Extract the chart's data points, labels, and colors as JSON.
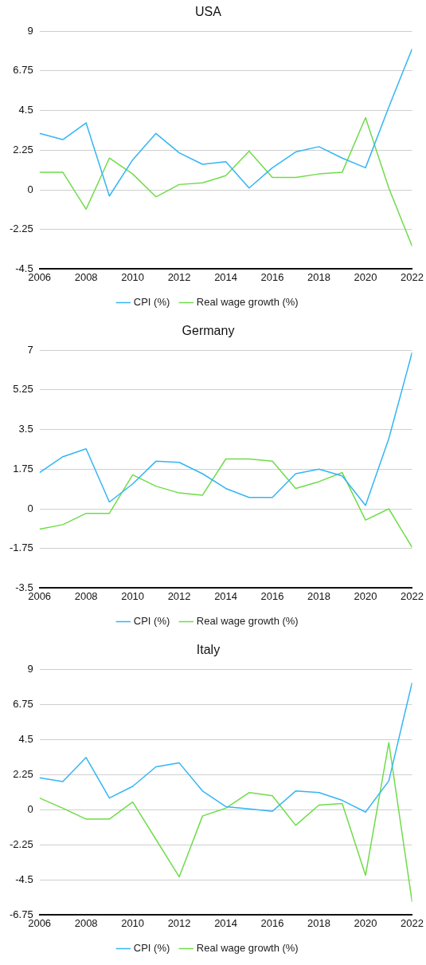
{
  "chart_data": [
    {
      "type": "line",
      "title": "USA",
      "x": [
        2006,
        2007,
        2008,
        2009,
        2010,
        2011,
        2012,
        2013,
        2014,
        2015,
        2016,
        2017,
        2018,
        2019,
        2020,
        2021,
        2022
      ],
      "xlim": [
        2006,
        2022
      ],
      "xticks": [
        2006,
        2008,
        2010,
        2012,
        2014,
        2016,
        2018,
        2020,
        2022
      ],
      "ylim": [
        -4.5,
        9
      ],
      "yticks": [
        -4.5,
        -2.25,
        0,
        2.25,
        4.5,
        6.75,
        9
      ],
      "grid": "y",
      "legend": "bottom",
      "marker": "none",
      "line_style": "solid",
      "series": [
        {
          "name": "CPI (%)",
          "color": "#33b5f5",
          "values": [
            3.2,
            2.85,
            3.8,
            -0.35,
            1.7,
            3.2,
            2.1,
            1.45,
            1.6,
            0.1,
            1.25,
            2.15,
            2.45,
            1.8,
            1.25,
            4.7,
            8.0
          ]
        },
        {
          "name": "Real wage growth (%)",
          "color": "#6fdc4a",
          "values": [
            1.0,
            1.0,
            -1.1,
            1.8,
            0.9,
            -0.4,
            0.3,
            0.4,
            0.8,
            2.2,
            0.7,
            0.7,
            0.9,
            1.0,
            4.1,
            0.1,
            -3.2
          ]
        }
      ]
    },
    {
      "type": "line",
      "title": "Germany",
      "x": [
        2006,
        2007,
        2008,
        2009,
        2010,
        2011,
        2012,
        2013,
        2014,
        2015,
        2016,
        2017,
        2018,
        2019,
        2020,
        2021,
        2022
      ],
      "xlim": [
        2006,
        2022
      ],
      "xticks": [
        2006,
        2008,
        2010,
        2012,
        2014,
        2016,
        2018,
        2020,
        2022
      ],
      "ylim": [
        -3.5,
        7
      ],
      "yticks": [
        -3.5,
        -1.75,
        0,
        1.75,
        3.5,
        5.25,
        7
      ],
      "grid": "y",
      "legend": "bottom",
      "marker": "none",
      "line_style": "solid",
      "series": [
        {
          "name": "CPI (%)",
          "color": "#33b5f5",
          "values": [
            1.6,
            2.3,
            2.65,
            0.3,
            1.1,
            2.1,
            2.05,
            1.55,
            0.9,
            0.5,
            0.5,
            1.55,
            1.75,
            1.45,
            0.15,
            3.1,
            6.9
          ]
        },
        {
          "name": "Real wage growth (%)",
          "color": "#6fdc4a",
          "values": [
            -0.9,
            -0.7,
            -0.2,
            -0.2,
            1.5,
            1.0,
            0.7,
            0.6,
            2.2,
            2.2,
            2.1,
            0.9,
            1.2,
            1.6,
            -0.5,
            0.0,
            -1.7
          ]
        }
      ]
    },
    {
      "type": "line",
      "title": "Italy",
      "x": [
        2006,
        2007,
        2008,
        2009,
        2010,
        2011,
        2012,
        2013,
        2014,
        2015,
        2016,
        2017,
        2018,
        2019,
        2020,
        2021,
        2022
      ],
      "xlim": [
        2006,
        2022
      ],
      "xticks": [
        2006,
        2008,
        2010,
        2012,
        2014,
        2016,
        2018,
        2020,
        2022
      ],
      "ylim": [
        -6.75,
        9
      ],
      "yticks": [
        -6.75,
        -4.5,
        -2.25,
        0,
        2.25,
        4.5,
        6.75,
        9
      ],
      "grid": "y",
      "legend": "bottom",
      "marker": "none",
      "line_style": "solid",
      "series": [
        {
          "name": "CPI (%)",
          "color": "#33b5f5",
          "values": [
            2.05,
            1.8,
            3.35,
            0.75,
            1.5,
            2.75,
            3.0,
            1.2,
            0.2,
            0.05,
            -0.1,
            1.2,
            1.1,
            0.6,
            -0.15,
            1.85,
            8.15
          ]
        },
        {
          "name": "Real wage growth (%)",
          "color": "#6fdc4a",
          "values": [
            0.75,
            0.1,
            -0.6,
            -0.6,
            0.5,
            -1.9,
            -4.3,
            -0.4,
            0.1,
            1.1,
            0.9,
            -1.0,
            0.3,
            0.4,
            -4.2,
            4.3,
            -5.9
          ]
        }
      ]
    }
  ]
}
